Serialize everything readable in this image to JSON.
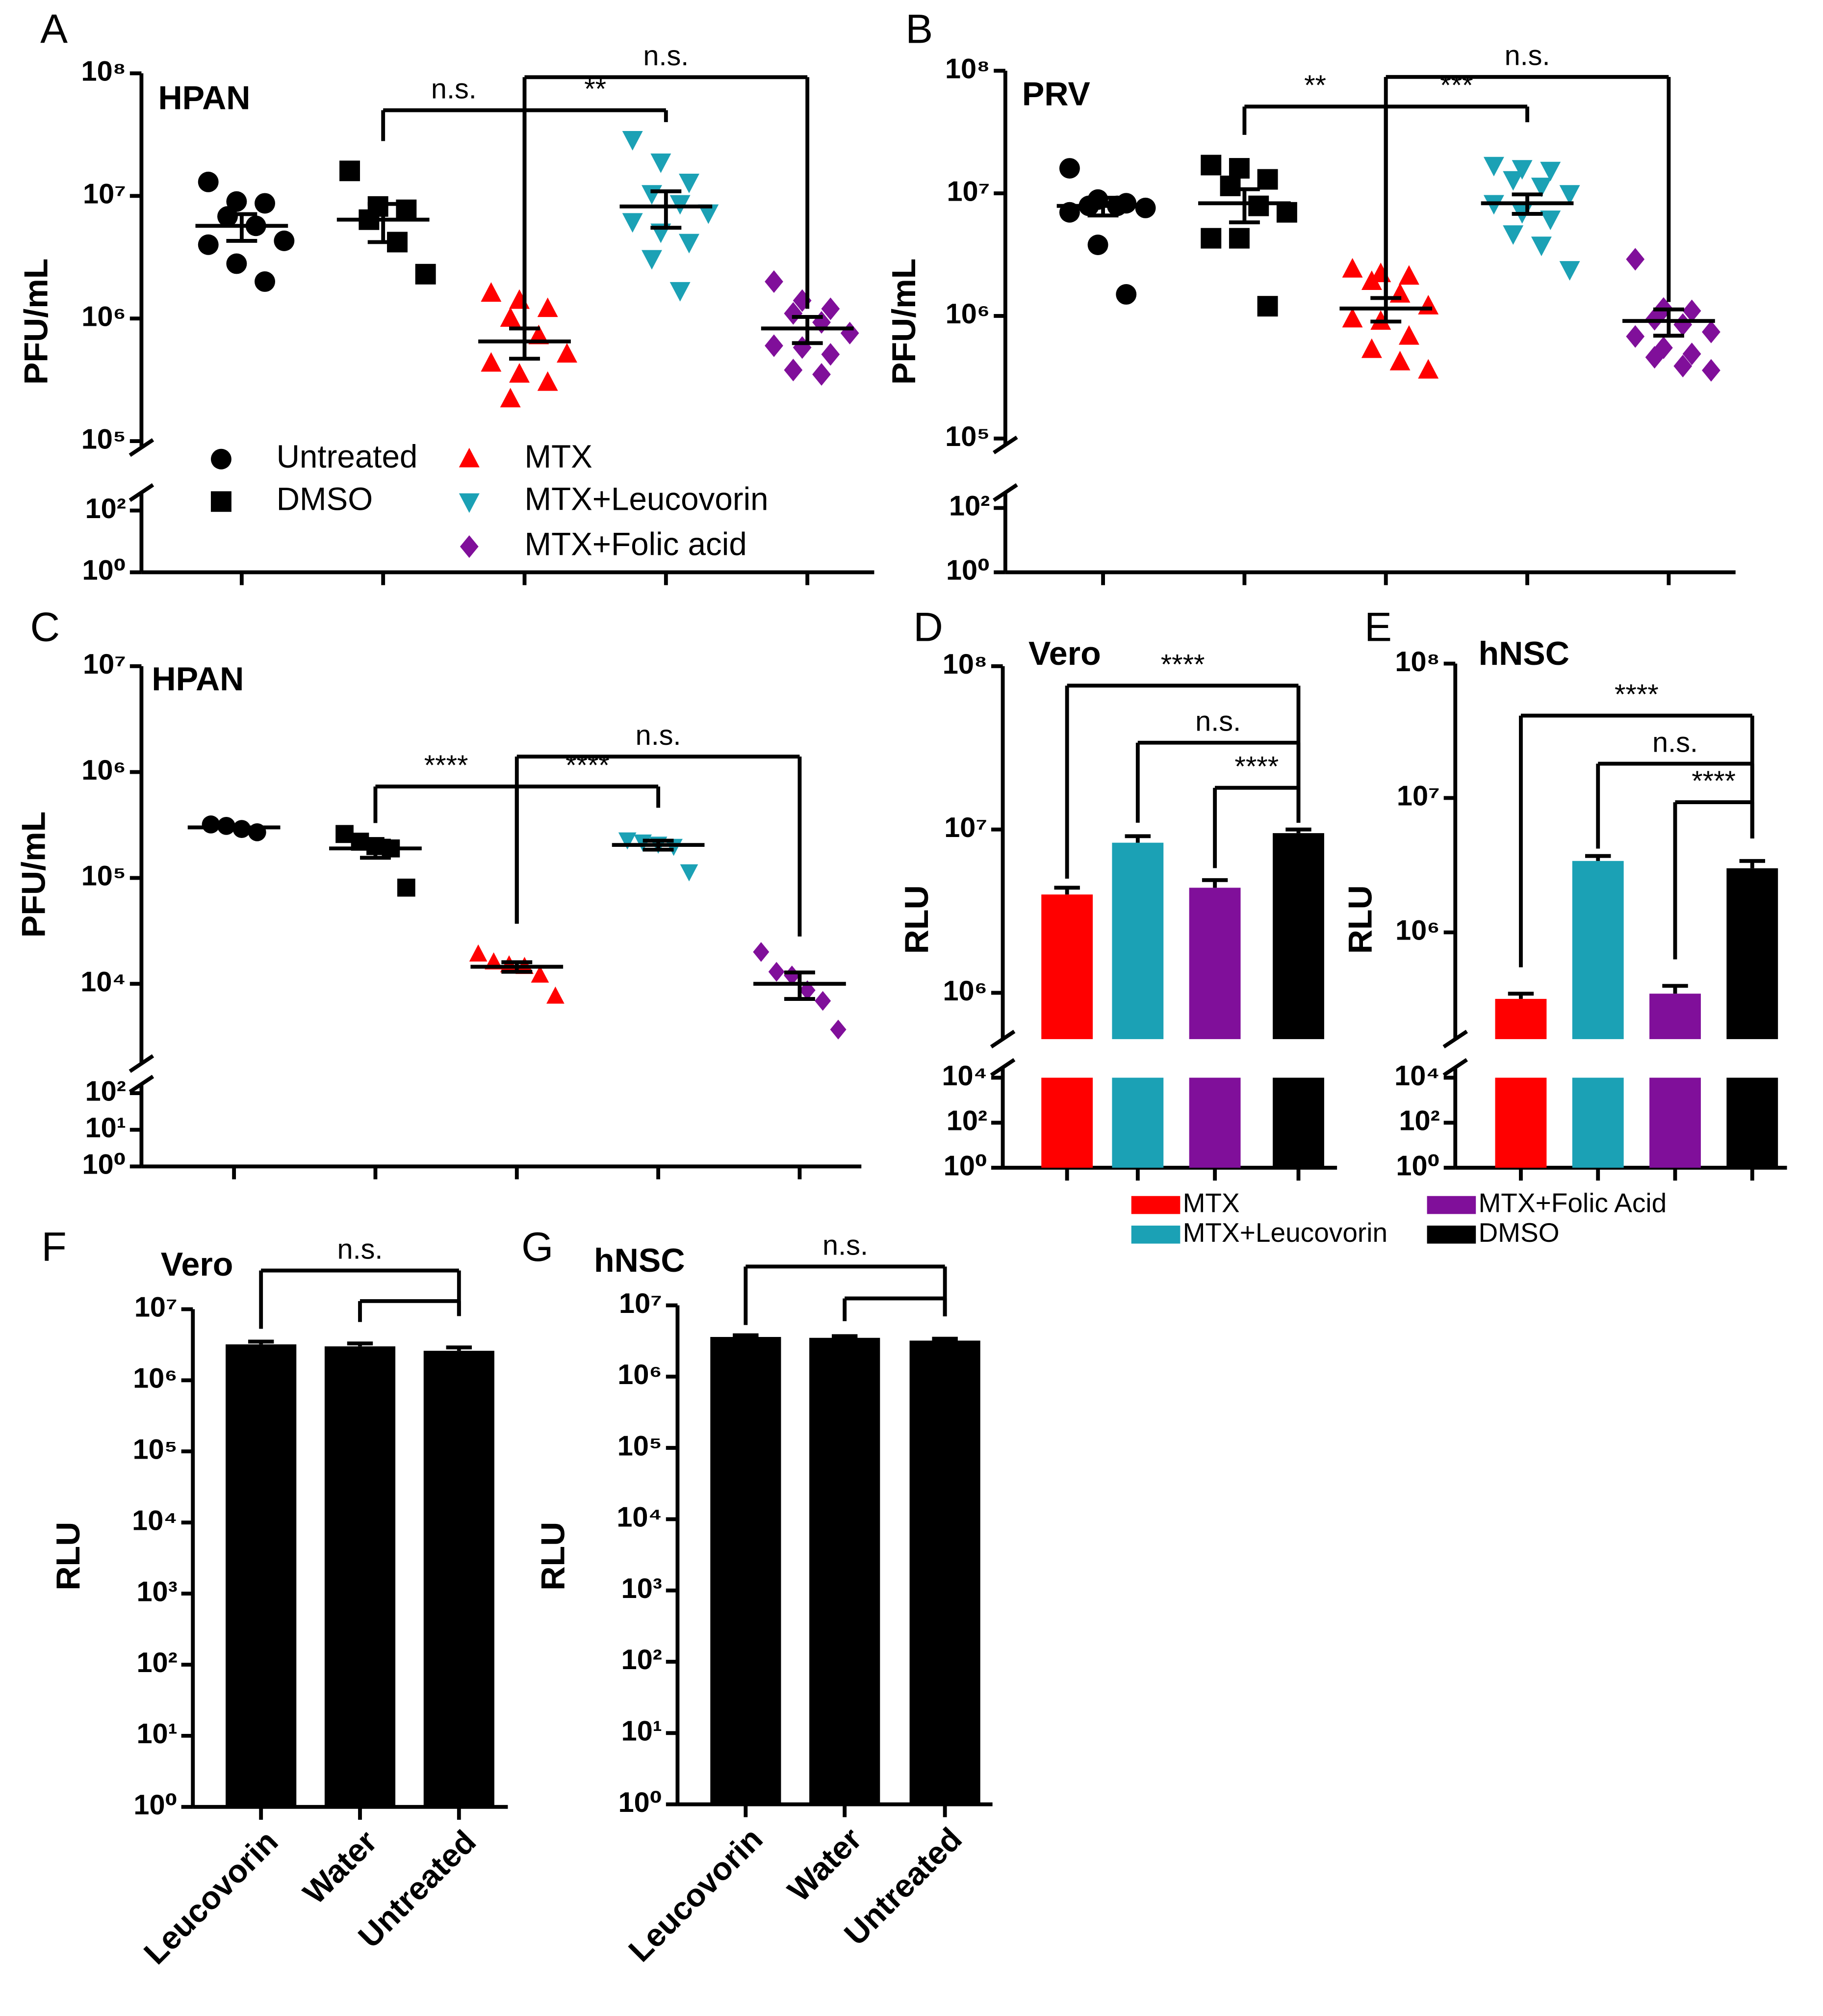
{
  "chart_data": [
    {
      "type": "scatter",
      "panel": "A",
      "title": "HPAN",
      "ylabel": "PFU/mL",
      "yscale": "log",
      "ylim": [
        1,
        100000000.0
      ],
      "ybreak": [
        100,
        100000.0
      ],
      "yticks": [
        {
          "value": 1,
          "label": "10⁰"
        },
        {
          "value": 100,
          "label": "10²"
        },
        {
          "value": 100000.0,
          "label": "10⁵"
        },
        {
          "value": 1000000.0,
          "label": "10⁶"
        },
        {
          "value": 10000000.0,
          "label": "10⁷"
        },
        {
          "value": 100000000.0,
          "label": "10⁸"
        }
      ],
      "series": [
        {
          "name": "Untreated",
          "color": "#000000",
          "marker": "circle",
          "values": [
            13000000.0,
            9000000.0,
            8700000.0,
            6800000.0,
            5700000.0,
            4300000.0,
            4000000.0,
            2800000.0,
            2000000.0
          ],
          "mean": 5700000.0,
          "sem": 1400000.0
        },
        {
          "name": "DMSO",
          "color": "#000000",
          "marker": "square",
          "values": [
            16000000.0,
            8200000.0,
            7700000.0,
            6400000.0,
            4200000.0,
            2300000.0
          ],
          "mean": 6400000.0,
          "sem": 2200000.0
        },
        {
          "name": "MTX",
          "color": "#ff0000",
          "marker": "triangle-up",
          "values": [
            1600000.0,
            1400000.0,
            1200000.0,
            1000000.0,
            720000.0,
            510000.0,
            430000.0,
            350000.0,
            300000.0,
            220000.0
          ],
          "mean": 650000.0,
          "sem": 180000.0
        },
        {
          "name": "MTX+Leucovorin",
          "color": "#1ba1b5",
          "marker": "triangle-down",
          "values": [
            29000000.0,
            19000000.0,
            13000000.0,
            10500000.0,
            8700000.0,
            7300000.0,
            6200000.0,
            5100000.0,
            4200000.0,
            3100000.0,
            1700000.0
          ],
          "mean": 8200000.0,
          "sem": 2700000.0
        },
        {
          "name": "MTX+Folic acid",
          "color": "#800f9a",
          "marker": "diamond",
          "values": [
            2000000.0,
            1400000.0,
            1200000.0,
            1100000.0,
            930000.0,
            760000.0,
            600000.0,
            580000.0,
            510000.0,
            380000.0,
            350000.0
          ],
          "mean": 830000.0,
          "sem": 200000.0
        }
      ],
      "brackets": [
        {
          "from": 1,
          "to": 2,
          "y": 50000000.0,
          "ends": [
            28000000.0,
            760000.0
          ],
          "label": "n.s."
        },
        {
          "from": 2,
          "to": 3,
          "y": 50000000.0,
          "ends": [
            760000.0,
            40000000.0
          ],
          "label": "**"
        },
        {
          "from": 2,
          "to": 4,
          "y": 93000000.0,
          "ends": [
            760000.0,
            1200000.0
          ],
          "label": "n.s."
        }
      ]
    },
    {
      "type": "scatter",
      "panel": "B",
      "title": "PRV",
      "ylabel": "PFU/mL",
      "yscale": "log",
      "ylim": [
        1,
        100000000.0
      ],
      "ybreak": [
        100,
        100000.0
      ],
      "yticks": [
        {
          "value": 1,
          "label": "10⁰"
        },
        {
          "value": 100,
          "label": "10²"
        },
        {
          "value": 100000.0,
          "label": "10⁵"
        },
        {
          "value": 1000000.0,
          "label": "10⁶"
        },
        {
          "value": 10000000.0,
          "label": "10⁷"
        },
        {
          "value": 100000000.0,
          "label": "10⁸"
        }
      ],
      "series": [
        {
          "color": "#000000",
          "marker": "circle",
          "values": [
            16000000.0,
            8900000.0,
            8300000.0,
            7900000.0,
            7900000.0,
            7600000.0,
            7000000.0,
            3800000.0,
            1500000.0
          ],
          "mean": 7900000.0,
          "sem": 1300000.0
        },
        {
          "color": "#000000",
          "marker": "square",
          "values": [
            17000000.0,
            16000000.0,
            13000000.0,
            11500000.0,
            7900000.0,
            7000000.0,
            4300000.0,
            4300000.0,
            1200000.0
          ],
          "mean": 8300000.0,
          "sem": 2500000.0
        },
        {
          "color": "#ff0000",
          "marker": "triangle-up",
          "values": [
            2400000.0,
            2200000.0,
            2100000.0,
            1900000.0,
            1500000.0,
            1200000.0,
            940000.0,
            900000.0,
            680000.0,
            530000.0,
            420000.0,
            360000.0
          ],
          "mean": 1150000.0,
          "sem": 250000.0
        },
        {
          "color": "#1ba1b5",
          "marker": "triangle-down",
          "values": [
            17000000.0,
            16000000.0,
            15500000.0,
            13000000.0,
            11500000.0,
            10000000.0,
            8300000.0,
            7000000.0,
            6200000.0,
            4700000.0,
            3800000.0,
            2400000.0
          ],
          "mean": 8300000.0,
          "sem": 1500000.0
        },
        {
          "color": "#800f9a",
          "marker": "diamond",
          "values": [
            2900000.0,
            1150000.0,
            1100000.0,
            940000.0,
            850000.0,
            740000.0,
            680000.0,
            550000.0,
            490000.0,
            460000.0,
            390000.0,
            360000.0
          ],
          "mean": 910000.0,
          "sem": 220000.0
        }
      ],
      "brackets": [
        {
          "from": 1,
          "to": 2,
          "y": 51000000.0,
          "ends": [
            30000000.0,
            1400000.0
          ],
          "label": "**"
        },
        {
          "from": 2,
          "to": 3,
          "y": 51000000.0,
          "ends": [
            1400000.0,
            38000000.0
          ],
          "label": "***"
        },
        {
          "from": 2,
          "to": 4,
          "y": 89000000.0,
          "ends": [
            1400000.0,
            1300000.0
          ],
          "label": "n.s."
        }
      ]
    },
    {
      "type": "scatter",
      "panel": "C",
      "title": "HPAN",
      "ylabel": "PFU/mL",
      "yscale": "log",
      "ylim": [
        1,
        10000000.0
      ],
      "ybreak": [
        100,
        10000.0
      ],
      "yticks": [
        {
          "value": 1,
          "label": "10⁰"
        },
        {
          "value": 10,
          "label": "10¹"
        },
        {
          "value": 100,
          "label": "10²"
        },
        {
          "value": 10000.0,
          "label": "10⁴"
        },
        {
          "value": 100000.0,
          "label": "10⁵"
        },
        {
          "value": 1000000.0,
          "label": "10⁶"
        },
        {
          "value": 10000000.0,
          "label": "10⁷"
        }
      ],
      "series": [
        {
          "color": "#000000",
          "marker": "circle",
          "values": [
            320000.0,
            310000.0,
            290000.0,
            270000.0
          ],
          "mean": 300000.0,
          "sem": 10000.0
        },
        {
          "color": "#000000",
          "marker": "square",
          "values": [
            260000.0,
            220000.0,
            200000.0,
            190000.0,
            81000.0
          ],
          "mean": 190000.0,
          "sem": 35000.0
        },
        {
          "color": "#ff0000",
          "marker": "triangle-up",
          "values": [
            19000.0,
            16000.0,
            15000.0,
            14500.0,
            12000.0,
            7600.0
          ],
          "mean": 14500.0,
          "sem": 1500.0
        },
        {
          "color": "#1ba1b5",
          "marker": "triangle-down",
          "values": [
            230000.0,
            220000.0,
            210000.0,
            200000.0,
            115000.0
          ],
          "mean": 205000.0,
          "sem": 20000.0
        },
        {
          "color": "#800f9a",
          "marker": "diamond",
          "values": [
            20000.0,
            13000.0,
            12000.0,
            8700.0,
            6900.0,
            3700.0
          ],
          "mean": 10000.0,
          "sem": 2800.0
        }
      ],
      "brackets": [
        {
          "from": 1,
          "to": 2,
          "y": 730000.0,
          "ends": [
            330000.0,
            37000.0
          ],
          "label": "****"
        },
        {
          "from": 2,
          "to": 3,
          "y": 730000.0,
          "ends": [
            37000.0,
            460000.0
          ],
          "label": "****"
        },
        {
          "from": 2,
          "to": 4,
          "y": 1400000.0,
          "ends": [
            37000.0,
            28000.0
          ],
          "label": "n.s."
        }
      ]
    },
    {
      "type": "bar",
      "panel": "D",
      "title": "Vero",
      "ylabel": "RLU",
      "yscale": "log",
      "ylim": [
        1,
        100000000.0
      ],
      "ybreak": [
        10000.0,
        1000000.0
      ],
      "yticks": [
        {
          "value": 1,
          "label": "10⁰"
        },
        {
          "value": 100,
          "label": "10²"
        },
        {
          "value": 10000.0,
          "label": "10⁴"
        },
        {
          "value": 1000000.0,
          "label": "10⁶"
        },
        {
          "value": 10000000.0,
          "label": "10⁷"
        },
        {
          "value": 100000000.0,
          "label": "10⁸"
        }
      ],
      "series": [
        {
          "name": "MTX",
          "color": "#ff0000",
          "value": 4000000.0,
          "sem": 400000.0
        },
        {
          "name": "MTX+Leucovorin",
          "color": "#1ba1b5",
          "value": 8300000.0,
          "sem": 800000.0
        },
        {
          "name": "MTX+Folic Acid",
          "color": "#800f9a",
          "value": 4400000.0,
          "sem": 500000.0
        },
        {
          "name": "DMSO",
          "color": "#000000",
          "value": 9500000.0,
          "sem": 500000.0
        }
      ],
      "brackets": [
        {
          "from": 0,
          "to": 3,
          "y": 76000000.0,
          "ends": [
            5000000.0,
            11000000.0
          ],
          "label": "****"
        },
        {
          "from": 1,
          "to": 3,
          "y": 34000000.0,
          "ends": [
            11000000.0,
            11000000.0
          ],
          "label": "n.s."
        },
        {
          "from": 2,
          "to": 3,
          "y": 18000000.0,
          "ends": [
            5800000.0,
            11000000.0
          ],
          "label": "****"
        }
      ]
    },
    {
      "type": "bar",
      "panel": "E",
      "title": "hNSC",
      "ylabel": "RLU",
      "yscale": "log",
      "ylim": [
        1,
        100000000.0
      ],
      "ybreak": [
        10000.0,
        1000000.0
      ],
      "yticks": [
        {
          "value": 1,
          "label": "10⁰"
        },
        {
          "value": 100,
          "label": "10²"
        },
        {
          "value": 10000.0,
          "label": "10⁴"
        },
        {
          "value": 1000000.0,
          "label": "10⁶"
        },
        {
          "value": 10000000.0,
          "label": "10⁷"
        },
        {
          "value": 100000000.0,
          "label": "10⁸"
        }
      ],
      "series": [
        {
          "color": "#ff0000",
          "value": 320000.0,
          "sem": 30000.0
        },
        {
          "color": "#1ba1b5",
          "value": 3400000.0,
          "sem": 300000.0
        },
        {
          "color": "#800f9a",
          "value": 350000.0,
          "sem": 50000.0
        },
        {
          "color": "#000000",
          "value": 3000000.0,
          "sem": 400000.0
        }
      ],
      "brackets": [
        {
          "from": 0,
          "to": 3,
          "y": 41000000.0,
          "ends": [
            550000.0,
            5000000.0
          ],
          "label": "****"
        },
        {
          "from": 1,
          "to": 3,
          "y": 18000000.0,
          "ends": [
            4200000.0,
            5000000.0
          ],
          "label": "n.s."
        },
        {
          "from": 2,
          "to": 3,
          "y": 9300000.0,
          "ends": [
            630000.0,
            5000000.0
          ],
          "label": "****"
        }
      ]
    },
    {
      "type": "bar",
      "panel": "F",
      "title": "Vero",
      "ylabel": "RLU",
      "yscale": "log",
      "ylim": [
        1,
        10000000.0
      ],
      "yticks": [
        {
          "value": 1,
          "label": "10⁰"
        },
        {
          "value": 10,
          "label": "10¹"
        },
        {
          "value": 100,
          "label": "10²"
        },
        {
          "value": 1000,
          "label": "10³"
        },
        {
          "value": 10000.0,
          "label": "10⁴"
        },
        {
          "value": 100000.0,
          "label": "10⁵"
        },
        {
          "value": 1000000.0,
          "label": "10⁶"
        },
        {
          "value": 10000000.0,
          "label": "10⁷"
        }
      ],
      "categories": [
        "Leucovorin",
        "Water",
        "Untreated"
      ],
      "values": [
        3200000.0,
        3000000.0,
        2600000.0
      ],
      "sem": [
        300000.0,
        300000.0,
        300000.0
      ],
      "color": "#000000",
      "brackets": [
        {
          "from": 0,
          "to": 2,
          "y": 35000000.0,
          "ends": [
            5300000.0,
            8000000.0
          ],
          "label": "n.s."
        },
        {
          "from": 1,
          "to": 2,
          "y": 13000000.0,
          "ends": [
            6600000.0,
            8000000.0
          ]
        }
      ]
    },
    {
      "type": "bar",
      "panel": "G",
      "title": "hNSC",
      "ylabel": "RLU",
      "yscale": "log",
      "ylim": [
        1,
        10000000.0
      ],
      "yticks": [
        {
          "value": 1,
          "label": "10⁰"
        },
        {
          "value": 10,
          "label": "10¹"
        },
        {
          "value": 100,
          "label": "10²"
        },
        {
          "value": 1000,
          "label": "10³"
        },
        {
          "value": 10000.0,
          "label": "10⁴"
        },
        {
          "value": 100000.0,
          "label": "10⁵"
        },
        {
          "value": 1000000.0,
          "label": "10⁶"
        },
        {
          "value": 10000000.0,
          "label": "10⁷"
        }
      ],
      "categories": [
        "Leucovorin",
        "Water",
        "Untreated"
      ],
      "values": [
        3600000.0,
        3500000.0,
        3200000.0
      ],
      "sem": [
        200000.0,
        200000.0,
        200000.0
      ],
      "color": "#000000",
      "brackets": [
        {
          "from": 0,
          "to": 2,
          "y": 35000000.0,
          "ends": [
            5300000.0,
            7000000.0
          ],
          "label": "n.s."
        },
        {
          "from": 1,
          "to": 2,
          "y": 12500000.0,
          "ends": [
            6000000.0,
            7000000.0
          ]
        }
      ]
    }
  ]
}
